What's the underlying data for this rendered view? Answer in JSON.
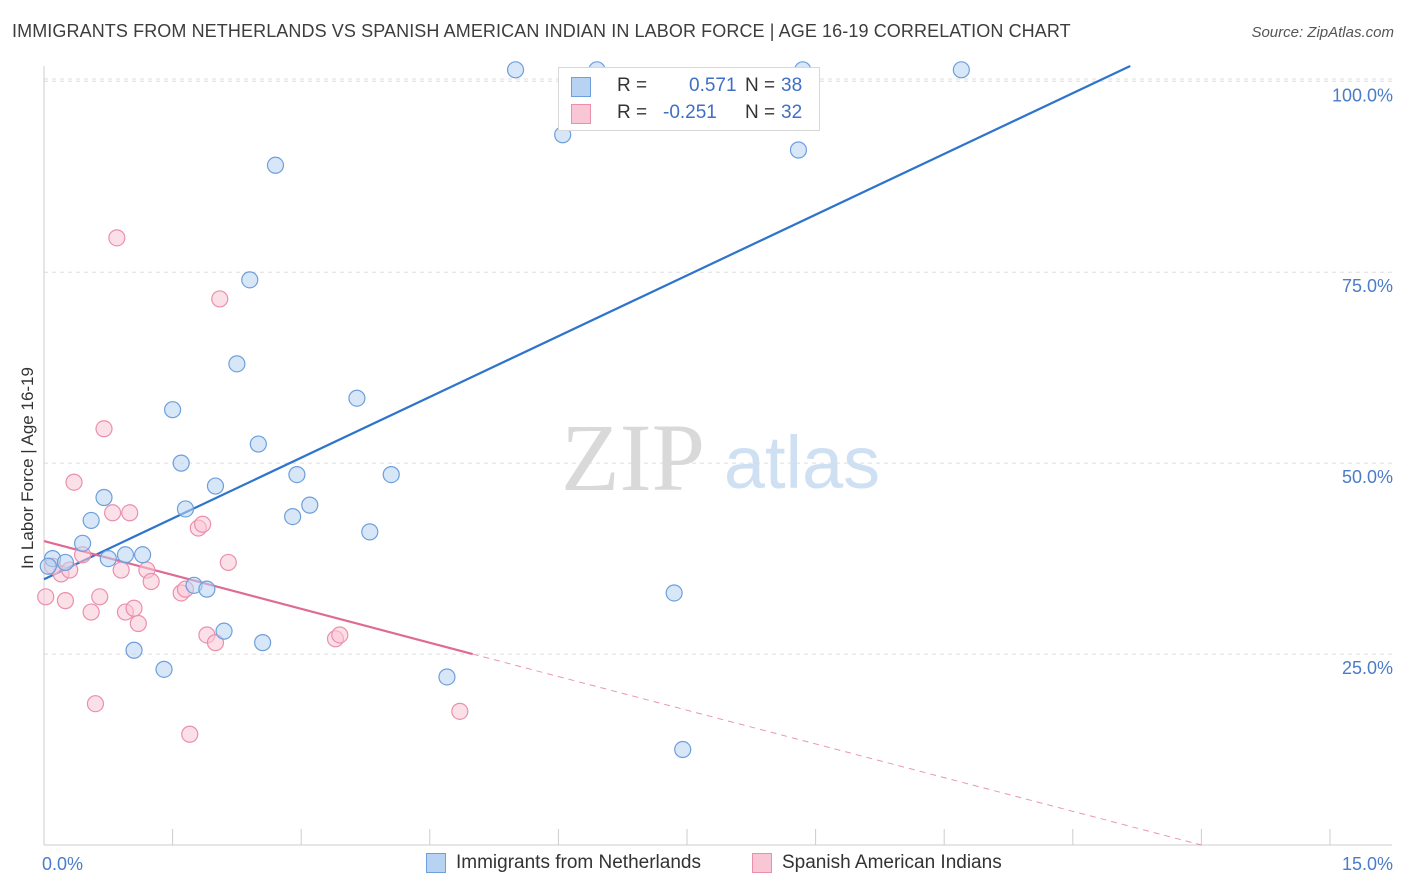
{
  "header": {
    "title": "IMMIGRANTS FROM NETHERLANDS VS SPANISH AMERICAN INDIAN IN LABOR FORCE | AGE 16-19 CORRELATION CHART",
    "source": "Source: ZipAtlas.com"
  },
  "watermark": {
    "part1": "ZIP",
    "part2": "atlas"
  },
  "legend": {
    "series1": {
      "r_label": "R =",
      "r_value": "0.571",
      "n_label": "N =",
      "n_value": "38"
    },
    "series2": {
      "r_label": "R =",
      "r_value": "-0.251",
      "n_label": "N =",
      "n_value": "32"
    }
  },
  "colors": {
    "blue_fill": "#b8d3f2",
    "blue_stroke": "#6d9fdc",
    "blue_line": "#2f74cc",
    "pink_fill": "#f9c6d6",
    "pink_stroke": "#ea8fae",
    "pink_line": "#e06a96",
    "tick_text": "#4a7cc7",
    "grid": "#dddddd"
  },
  "chart_data": {
    "type": "scatter",
    "title": "IMMIGRANTS FROM NETHERLANDS VS SPANISH AMERICAN INDIAN IN LABOR FORCE | AGE 16-19 CORRELATION CHART",
    "xlabel": "",
    "ylabel": "In Labor Force | Age 16-19",
    "xlim": [
      0,
      15
    ],
    "ylim": [
      0,
      102
    ],
    "x_tick_labels": [
      "0.0%",
      "15.0%"
    ],
    "y_ticks": [
      25,
      50,
      75,
      100
    ],
    "y_tick_labels": [
      "25.0%",
      "50.0%",
      "75.0%",
      "100.0%"
    ],
    "series": [
      {
        "name": "Immigrants from Netherlands",
        "color": "blue",
        "points": [
          [
            0.1,
            37.5
          ],
          [
            0.25,
            37.0
          ],
          [
            0.45,
            39.5
          ],
          [
            0.55,
            42.5
          ],
          [
            0.7,
            45.5
          ],
          [
            0.75,
            37.5
          ],
          [
            0.95,
            38.0
          ],
          [
            1.05,
            25.5
          ],
          [
            1.15,
            38.0
          ],
          [
            1.4,
            23.0
          ],
          [
            1.5,
            57.0
          ],
          [
            1.6,
            50.0
          ],
          [
            1.65,
            44.0
          ],
          [
            1.75,
            34.0
          ],
          [
            1.9,
            33.5
          ],
          [
            2.0,
            47.0
          ],
          [
            2.1,
            28.0
          ],
          [
            2.25,
            63.0
          ],
          [
            2.4,
            74.0
          ],
          [
            2.5,
            52.5
          ],
          [
            2.55,
            26.5
          ],
          [
            2.7,
            89.0
          ],
          [
            2.9,
            43.0
          ],
          [
            2.95,
            48.5
          ],
          [
            3.1,
            44.5
          ],
          [
            3.65,
            58.5
          ],
          [
            3.8,
            41.0
          ],
          [
            4.05,
            48.5
          ],
          [
            4.7,
            22.0
          ],
          [
            5.5,
            101.5
          ],
          [
            6.05,
            93.0
          ],
          [
            6.45,
            101.5
          ],
          [
            7.35,
            33.0
          ],
          [
            7.45,
            12.5
          ],
          [
            8.8,
            91.0
          ],
          [
            8.85,
            101.5
          ],
          [
            10.7,
            101.5
          ],
          [
            0.05,
            36.5
          ]
        ],
        "trend": {
          "x": [
            0.0,
            12.67
          ],
          "y": [
            34.8,
            102.0
          ]
        }
      },
      {
        "name": "Spanish American Indians",
        "color": "pink",
        "points": [
          [
            0.02,
            32.5
          ],
          [
            0.1,
            36.5
          ],
          [
            0.2,
            35.5
          ],
          [
            0.25,
            32.0
          ],
          [
            0.3,
            36.0
          ],
          [
            0.35,
            47.5
          ],
          [
            0.45,
            38.0
          ],
          [
            0.55,
            30.5
          ],
          [
            0.6,
            18.5
          ],
          [
            0.65,
            32.5
          ],
          [
            0.7,
            54.5
          ],
          [
            0.8,
            43.5
          ],
          [
            0.85,
            79.5
          ],
          [
            0.9,
            36.0
          ],
          [
            0.95,
            30.5
          ],
          [
            1.0,
            43.5
          ],
          [
            1.05,
            31.0
          ],
          [
            1.1,
            29.0
          ],
          [
            1.2,
            36.0
          ],
          [
            1.25,
            34.5
          ],
          [
            1.6,
            33.0
          ],
          [
            1.65,
            33.5
          ],
          [
            1.7,
            14.5
          ],
          [
            1.8,
            41.5
          ],
          [
            1.85,
            42.0
          ],
          [
            1.9,
            27.5
          ],
          [
            2.0,
            26.5
          ],
          [
            2.05,
            71.5
          ],
          [
            2.15,
            37.0
          ],
          [
            3.4,
            27.0
          ],
          [
            3.45,
            27.5
          ],
          [
            4.85,
            17.5
          ]
        ],
        "trend": {
          "x": [
            0.0,
            5.0
          ],
          "y": [
            39.8,
            25.0
          ]
        },
        "trend_extension": {
          "x": [
            5.0,
            13.5
          ],
          "y": [
            25.0,
            0.0
          ]
        }
      }
    ],
    "legend_entries": [
      "Immigrants from Netherlands",
      "Spanish American Indians"
    ]
  }
}
